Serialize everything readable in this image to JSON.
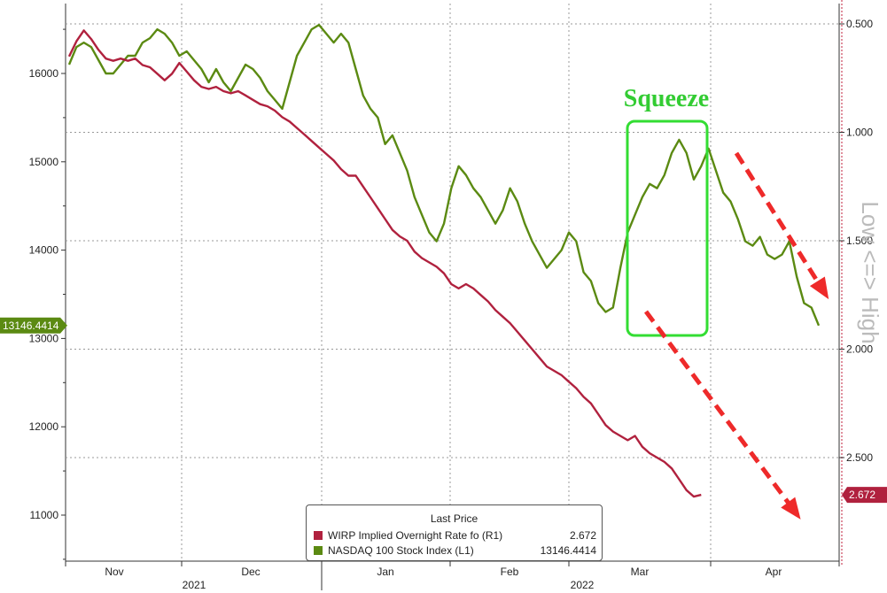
{
  "chart_data": {
    "type": "line",
    "title": "",
    "left_axis": {
      "ticks": [
        11000,
        12000,
        13000,
        14000,
        15000,
        16000
      ],
      "ylim": [
        10500,
        16800
      ]
    },
    "right_axis": {
      "ticks": [
        "0.500",
        "1.000",
        "1.500",
        "2.000",
        "2.500"
      ],
      "tick_values": [
        0.5,
        1.0,
        1.5,
        2.0,
        2.5
      ],
      "inverted": true,
      "ylim": [
        0.4,
        2.95
      ],
      "label": "Low <=> High"
    },
    "x_month_labels": [
      "Nov",
      "Dec",
      "Jan",
      "Feb",
      "Mar",
      "Apr"
    ],
    "x_year_labels": [
      "2021",
      "2022"
    ],
    "x_range_days": [
      0,
      177
    ],
    "series": [
      {
        "name": "NASDAQ 100 Stock Index (L1)",
        "color": "#5b8a12",
        "axis": "left",
        "last_price": "13146.4414",
        "points": [
          [
            0,
            16100
          ],
          [
            2,
            16300
          ],
          [
            4,
            16350
          ],
          [
            6,
            16300
          ],
          [
            8,
            16150
          ],
          [
            10,
            16000
          ],
          [
            12,
            16000
          ],
          [
            14,
            16100
          ],
          [
            16,
            16200
          ],
          [
            18,
            16200
          ],
          [
            20,
            16350
          ],
          [
            22,
            16400
          ],
          [
            24,
            16500
          ],
          [
            26,
            16450
          ],
          [
            28,
            16350
          ],
          [
            30,
            16200
          ],
          [
            32,
            16250
          ],
          [
            34,
            16150
          ],
          [
            36,
            16050
          ],
          [
            38,
            15900
          ],
          [
            40,
            16050
          ],
          [
            42,
            15900
          ],
          [
            44,
            15800
          ],
          [
            46,
            15950
          ],
          [
            48,
            16100
          ],
          [
            50,
            16050
          ],
          [
            52,
            15950
          ],
          [
            54,
            15800
          ],
          [
            56,
            15700
          ],
          [
            58,
            15600
          ],
          [
            60,
            15900
          ],
          [
            62,
            16200
          ],
          [
            64,
            16350
          ],
          [
            66,
            16500
          ],
          [
            68,
            16550
          ],
          [
            70,
            16450
          ],
          [
            72,
            16350
          ],
          [
            74,
            16450
          ],
          [
            76,
            16350
          ],
          [
            78,
            16050
          ],
          [
            80,
            15750
          ],
          [
            82,
            15600
          ],
          [
            84,
            15500
          ],
          [
            86,
            15200
          ],
          [
            88,
            15300
          ],
          [
            90,
            15100
          ],
          [
            92,
            14900
          ],
          [
            94,
            14600
          ],
          [
            96,
            14400
          ],
          [
            98,
            14200
          ],
          [
            100,
            14100
          ],
          [
            102,
            14300
          ],
          [
            104,
            14700
          ],
          [
            106,
            14950
          ],
          [
            108,
            14850
          ],
          [
            110,
            14700
          ],
          [
            112,
            14600
          ],
          [
            114,
            14450
          ],
          [
            116,
            14300
          ],
          [
            118,
            14450
          ],
          [
            120,
            14700
          ],
          [
            122,
            14550
          ],
          [
            124,
            14300
          ],
          [
            126,
            14100
          ],
          [
            128,
            13950
          ],
          [
            130,
            13800
          ],
          [
            132,
            13900
          ],
          [
            134,
            14000
          ],
          [
            136,
            14200
          ],
          [
            138,
            14100
          ],
          [
            140,
            13750
          ],
          [
            142,
            13650
          ],
          [
            144,
            13400
          ],
          [
            146,
            13300
          ],
          [
            148,
            13350
          ],
          [
            150,
            13800
          ],
          [
            152,
            14200
          ],
          [
            154,
            14400
          ],
          [
            156,
            14600
          ],
          [
            158,
            14750
          ],
          [
            160,
            14700
          ],
          [
            162,
            14850
          ],
          [
            164,
            15100
          ],
          [
            166,
            15250
          ],
          [
            168,
            15100
          ],
          [
            170,
            14800
          ],
          [
            172,
            14950
          ],
          [
            174,
            15150
          ],
          [
            176,
            14900
          ],
          [
            178,
            14650
          ],
          [
            180,
            14550
          ],
          [
            182,
            14350
          ],
          [
            184,
            14100
          ],
          [
            186,
            14050
          ],
          [
            188,
            14150
          ],
          [
            190,
            13950
          ],
          [
            192,
            13900
          ],
          [
            194,
            13950
          ],
          [
            196,
            14100
          ],
          [
            198,
            13700
          ],
          [
            200,
            13400
          ],
          [
            202,
            13350
          ],
          [
            204,
            13146.4414
          ]
        ]
      },
      {
        "name": "WIRP Implied Overnight Rate fo (R1)",
        "color": "#b0213e",
        "axis": "right",
        "last_price": "2.672",
        "points": [
          [
            0,
            0.65
          ],
          [
            2,
            0.58
          ],
          [
            4,
            0.53
          ],
          [
            6,
            0.57
          ],
          [
            8,
            0.62
          ],
          [
            10,
            0.66
          ],
          [
            12,
            0.67
          ],
          [
            14,
            0.66
          ],
          [
            16,
            0.67
          ],
          [
            18,
            0.66
          ],
          [
            20,
            0.69
          ],
          [
            22,
            0.7
          ],
          [
            24,
            0.73
          ],
          [
            26,
            0.76
          ],
          [
            28,
            0.73
          ],
          [
            30,
            0.68
          ],
          [
            32,
            0.72
          ],
          [
            34,
            0.76
          ],
          [
            36,
            0.79
          ],
          [
            38,
            0.8
          ],
          [
            40,
            0.79
          ],
          [
            42,
            0.81
          ],
          [
            44,
            0.82
          ],
          [
            46,
            0.81
          ],
          [
            48,
            0.83
          ],
          [
            50,
            0.85
          ],
          [
            52,
            0.87
          ],
          [
            54,
            0.88
          ],
          [
            56,
            0.9
          ],
          [
            58,
            0.93
          ],
          [
            60,
            0.95
          ],
          [
            62,
            0.98
          ],
          [
            64,
            1.01
          ],
          [
            66,
            1.04
          ],
          [
            68,
            1.07
          ],
          [
            70,
            1.1
          ],
          [
            72,
            1.13
          ],
          [
            74,
            1.17
          ],
          [
            76,
            1.2
          ],
          [
            78,
            1.2
          ],
          [
            80,
            1.25
          ],
          [
            82,
            1.3
          ],
          [
            84,
            1.35
          ],
          [
            86,
            1.4
          ],
          [
            88,
            1.45
          ],
          [
            90,
            1.48
          ],
          [
            92,
            1.5
          ],
          [
            94,
            1.55
          ],
          [
            96,
            1.58
          ],
          [
            98,
            1.6
          ],
          [
            100,
            1.62
          ],
          [
            102,
            1.65
          ],
          [
            104,
            1.7
          ],
          [
            106,
            1.72
          ],
          [
            108,
            1.7
          ],
          [
            110,
            1.72
          ],
          [
            112,
            1.75
          ],
          [
            114,
            1.78
          ],
          [
            116,
            1.82
          ],
          [
            118,
            1.85
          ],
          [
            120,
            1.88
          ],
          [
            122,
            1.92
          ],
          [
            124,
            1.96
          ],
          [
            126,
            2.0
          ],
          [
            128,
            2.04
          ],
          [
            130,
            2.08
          ],
          [
            132,
            2.1
          ],
          [
            134,
            2.12
          ],
          [
            136,
            2.15
          ],
          [
            138,
            2.18
          ],
          [
            140,
            2.22
          ],
          [
            142,
            2.25
          ],
          [
            144,
            2.3
          ],
          [
            146,
            2.35
          ],
          [
            148,
            2.38
          ],
          [
            150,
            2.4
          ],
          [
            152,
            2.42
          ],
          [
            154,
            2.4
          ],
          [
            156,
            2.45
          ],
          [
            158,
            2.48
          ],
          [
            160,
            2.5
          ],
          [
            162,
            2.52
          ],
          [
            164,
            2.55
          ],
          [
            166,
            2.6
          ],
          [
            168,
            2.65
          ],
          [
            170,
            2.68
          ],
          [
            172,
            2.672
          ]
        ]
      }
    ],
    "annotations": [
      {
        "text": "Squeeze",
        "color": "#33cc33"
      }
    ]
  }
}
